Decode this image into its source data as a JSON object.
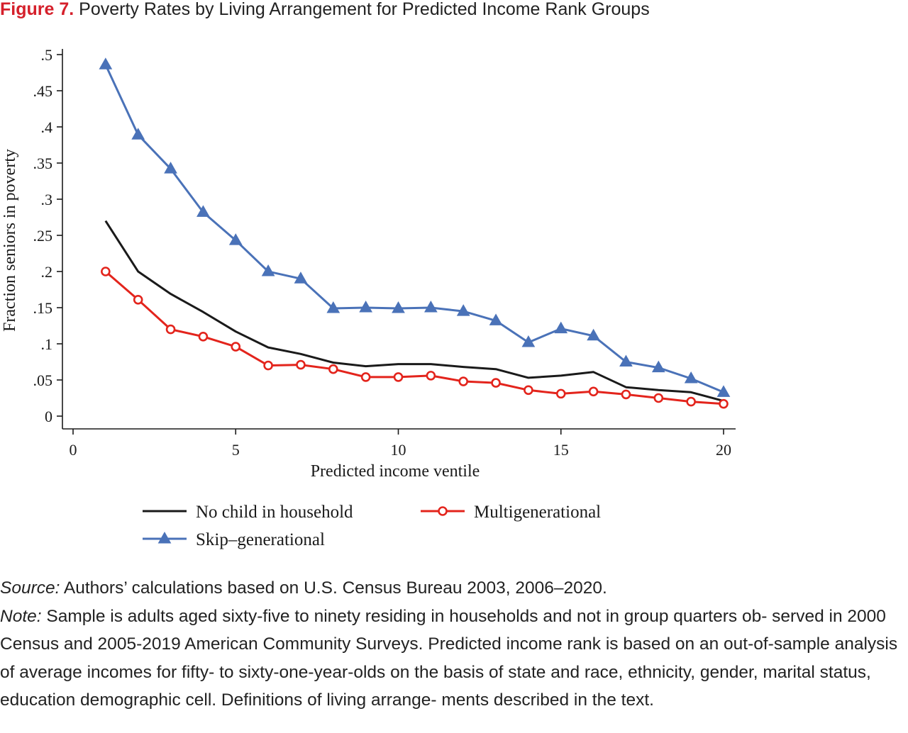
{
  "figure": {
    "label": "Figure 7.",
    "title": "Poverty Rates by Living Arrangement for Predicted Income Rank Groups"
  },
  "chart_data": {
    "type": "line",
    "xlabel": "Predicted income ventile",
    "ylabel": "Fraction seniors in poverty",
    "xlim": [
      0,
      20
    ],
    "ylim": [
      0,
      0.5
    ],
    "xticks": [
      0,
      5,
      10,
      15,
      20
    ],
    "xtick_labels": [
      "0",
      "5",
      "10",
      "15",
      "20"
    ],
    "yticks": [
      0,
      0.05,
      0.1,
      0.15,
      0.2,
      0.25,
      0.3,
      0.35,
      0.4,
      0.45,
      0.5
    ],
    "ytick_labels": [
      "0",
      ".05",
      ".1",
      ".15",
      ".2",
      ".25",
      ".3",
      ".35",
      ".4",
      ".45",
      ".5"
    ],
    "grid": false,
    "legend_position": "bottom",
    "x": [
      1,
      2,
      3,
      4,
      5,
      6,
      7,
      8,
      9,
      10,
      11,
      12,
      13,
      14,
      15,
      16,
      17,
      18,
      19,
      20
    ],
    "series": [
      {
        "name": "No child in household",
        "color": "#1a1a1a",
        "marker": "none",
        "values": [
          0.27,
          0.2,
          0.169,
          0.144,
          0.117,
          0.095,
          0.086,
          0.074,
          0.069,
          0.072,
          0.072,
          0.068,
          0.065,
          0.053,
          0.056,
          0.061,
          0.04,
          0.036,
          0.033,
          0.021
        ]
      },
      {
        "name": "Multigenerational",
        "color": "#e3241c",
        "marker": "hollow-circle",
        "values": [
          0.2,
          0.161,
          0.12,
          0.11,
          0.096,
          0.07,
          0.071,
          0.065,
          0.054,
          0.054,
          0.056,
          0.048,
          0.046,
          0.036,
          0.031,
          0.034,
          0.03,
          0.025,
          0.02,
          0.017
        ]
      },
      {
        "name": "Skip–generational",
        "color": "#4a72b8",
        "marker": "triangle",
        "values": [
          0.486,
          0.389,
          0.342,
          0.282,
          0.243,
          0.2,
          0.19,
          0.149,
          0.15,
          0.149,
          0.15,
          0.145,
          0.132,
          0.102,
          0.121,
          0.111,
          0.075,
          0.067,
          0.052,
          0.033
        ]
      }
    ]
  },
  "footer": {
    "source_label": "Source:",
    "source_text": " Authors’ calculations based on U.S. Census Bureau 2003, 2006–2020.",
    "note_label": "Note:",
    "note_text": " Sample is adults aged sixty-five to ninety residing in households and not in group quarters ob- served in 2000 Census and 2005-2019 American Community Surveys. Predicted income rank is based on an out-of-sample analysis of average incomes for fifty- to sixty-one-year-olds on the basis of state and race, ethnicity, gender, marital status, education demographic cell. Definitions of living arrange- ments described in the text."
  }
}
